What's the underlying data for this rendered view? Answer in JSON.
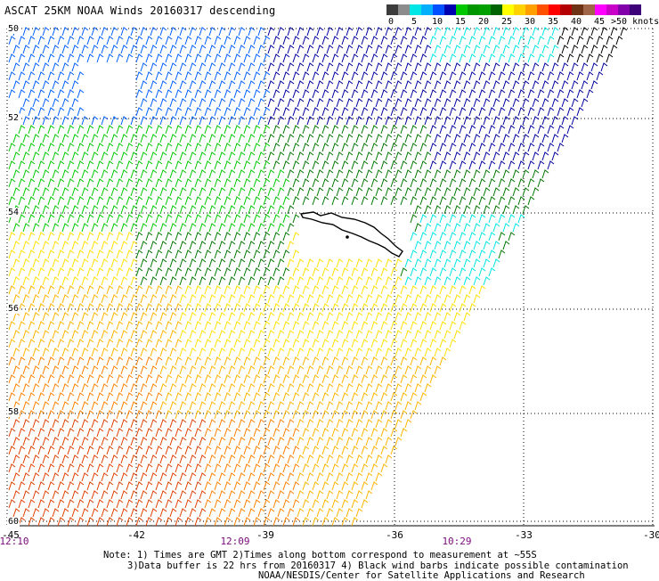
{
  "title": "ASCAT 25KM NOAA Winds 20160317 descending",
  "legend": {
    "units": ">50 knots",
    "labels": [
      "0",
      "5",
      "10",
      "15",
      "20",
      "25",
      "30",
      "35",
      "40",
      "45"
    ],
    "colors": [
      "#3c3c3c",
      "#8c8c8c",
      "#00e5e5",
      "#00b0ff",
      "#0050ff",
      "#0000b0",
      "#00c800",
      "#009600",
      "#00a000",
      "#006400",
      "#ffff00",
      "#ffd200",
      "#ffa000",
      "#ff5000",
      "#ff0000",
      "#b40000",
      "#6e3214",
      "#a06446",
      "#ff00ff",
      "#c800c8",
      "#8200aa",
      "#3c0078"
    ]
  },
  "map": {
    "lat_labels": [
      "50",
      "52",
      "54",
      "56",
      "58",
      "60"
    ],
    "lon_labels": [
      "-45",
      "-42",
      "-39",
      "-36",
      "-33",
      "-30"
    ],
    "time_labels": [
      "12:10",
      "12:09",
      "10:29"
    ],
    "barb_colors": {
      "dark": "#000000",
      "cyan": "#00e5e5",
      "blue": "#0060ff",
      "navy": "#0000a0",
      "green": "#00c800",
      "darkgreen": "#007800",
      "yellow": "#ffe000",
      "gold": "#ffb400",
      "orange": "#ff8000",
      "redorange": "#e04000"
    }
  },
  "notes": {
    "line1": "Note: 1) Times are GMT 2)Times along bottom correspond to measurement at ~55S",
    "line2": "3)Data buffer is 22 hrs from 20160317 4) Black wind barbs indicate possible contamination",
    "line3": "NOAA/NESDIS/Center for Satellite Applications and Research"
  }
}
